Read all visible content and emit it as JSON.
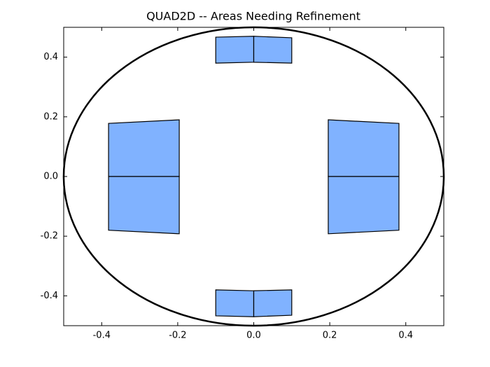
{
  "chart_data": {
    "type": "patches",
    "title": "QUAD2D -- Areas Needing Refinement",
    "xlim": [
      -0.5,
      0.5
    ],
    "ylim": [
      -0.5,
      0.5
    ],
    "xticks": [
      -0.4,
      -0.2,
      {
        "value": 0,
        "label": "0.0"
      },
      0.2,
      0.4
    ],
    "yticks": [
      -0.4,
      -0.2,
      {
        "value": 0,
        "label": "0.0"
      },
      0.2,
      0.4
    ],
    "boundary": {
      "cx": 0,
      "cy": 0,
      "r": 0.5,
      "color": "#000000"
    },
    "color": "#80b2ff",
    "edgecolor": "#000000",
    "patches": [
      {
        "x": [
          -0.1,
          0,
          0,
          -0.1
        ],
        "y": [
          0.38,
          0.383,
          0.47,
          0.467
        ]
      },
      {
        "x": [
          0,
          0.1,
          0.1,
          0
        ],
        "y": [
          0.383,
          0.38,
          0.465,
          0.47
        ]
      },
      {
        "x": [
          -0.1,
          0,
          0,
          -0.1
        ],
        "y": [
          -0.38,
          -0.383,
          -0.47,
          -0.467
        ]
      },
      {
        "x": [
          0,
          0.1,
          0.1,
          0
        ],
        "y": [
          -0.383,
          -0.38,
          -0.465,
          -0.47
        ]
      },
      {
        "x": [
          -0.382,
          -0.196,
          -0.196,
          -0.382
        ],
        "y": [
          0,
          0,
          0.19,
          0.178
        ]
      },
      {
        "x": [
          -0.382,
          -0.196,
          -0.196,
          -0.382
        ],
        "y": [
          0,
          0,
          -0.192,
          -0.18
        ]
      },
      {
        "x": [
          0.382,
          0.196,
          0.196,
          0.382
        ],
        "y": [
          0,
          0,
          0.19,
          0.178
        ]
      },
      {
        "x": [
          0.382,
          0.196,
          0.196,
          0.382
        ],
        "y": [
          0,
          0,
          -0.192,
          -0.18
        ]
      }
    ]
  }
}
